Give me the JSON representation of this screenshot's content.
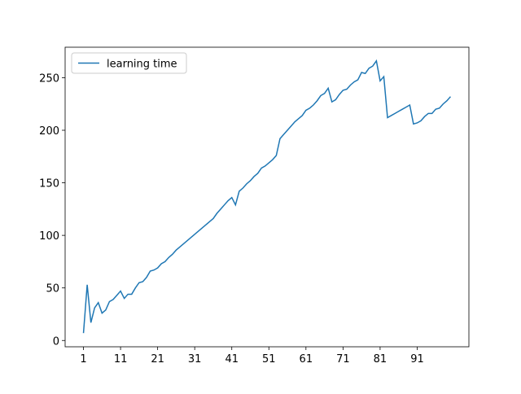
{
  "chart_data": {
    "type": "line",
    "x": [
      1,
      2,
      3,
      4,
      5,
      6,
      7,
      8,
      9,
      10,
      11,
      12,
      13,
      14,
      15,
      16,
      17,
      18,
      19,
      20,
      21,
      22,
      23,
      24,
      25,
      26,
      27,
      28,
      29,
      30,
      31,
      32,
      33,
      34,
      35,
      36,
      37,
      38,
      39,
      40,
      41,
      42,
      43,
      44,
      45,
      46,
      47,
      48,
      49,
      50,
      51,
      52,
      53,
      54,
      55,
      56,
      57,
      58,
      59,
      60,
      61,
      62,
      63,
      64,
      65,
      66,
      67,
      68,
      69,
      70,
      71,
      72,
      73,
      74,
      75,
      76,
      77,
      78,
      79,
      80,
      81,
      82,
      83,
      84,
      85,
      86,
      87,
      88,
      89,
      90,
      91,
      92,
      93,
      94,
      95,
      96,
      97,
      98,
      99,
      100
    ],
    "series": [
      {
        "name": "learning time",
        "color": "#1f77b4",
        "values": [
          7,
          53,
          17,
          31,
          36,
          26,
          29,
          37,
          39,
          43,
          47,
          40,
          44,
          44,
          50,
          55,
          56,
          60,
          66,
          67,
          69,
          73,
          75,
          79,
          82,
          86,
          89,
          92,
          95,
          98,
          101,
          104,
          107,
          110,
          113,
          116,
          121,
          125,
          129,
          133,
          136,
          129,
          142,
          145,
          149,
          152,
          156,
          159,
          164,
          166,
          169,
          172,
          176,
          192,
          196,
          200,
          204,
          208,
          211,
          214,
          219,
          221,
          224,
          228,
          233,
          235,
          240,
          227,
          229,
          234,
          238,
          239,
          243,
          246,
          248,
          255,
          254,
          259,
          261,
          266,
          247,
          251,
          212,
          214,
          216,
          218,
          220,
          222,
          224,
          206,
          207,
          209,
          213,
          216,
          216,
          220,
          221,
          225,
          228,
          232
        ]
      }
    ],
    "xlim": [
      -3.95,
      104.95
    ],
    "xticks": [
      1,
      11,
      21,
      31,
      41,
      51,
      61,
      71,
      81,
      91
    ],
    "ylim": [
      -6,
      279
    ],
    "yticks": [
      0,
      50,
      100,
      150,
      200,
      250
    ],
    "legend": "upper left"
  }
}
